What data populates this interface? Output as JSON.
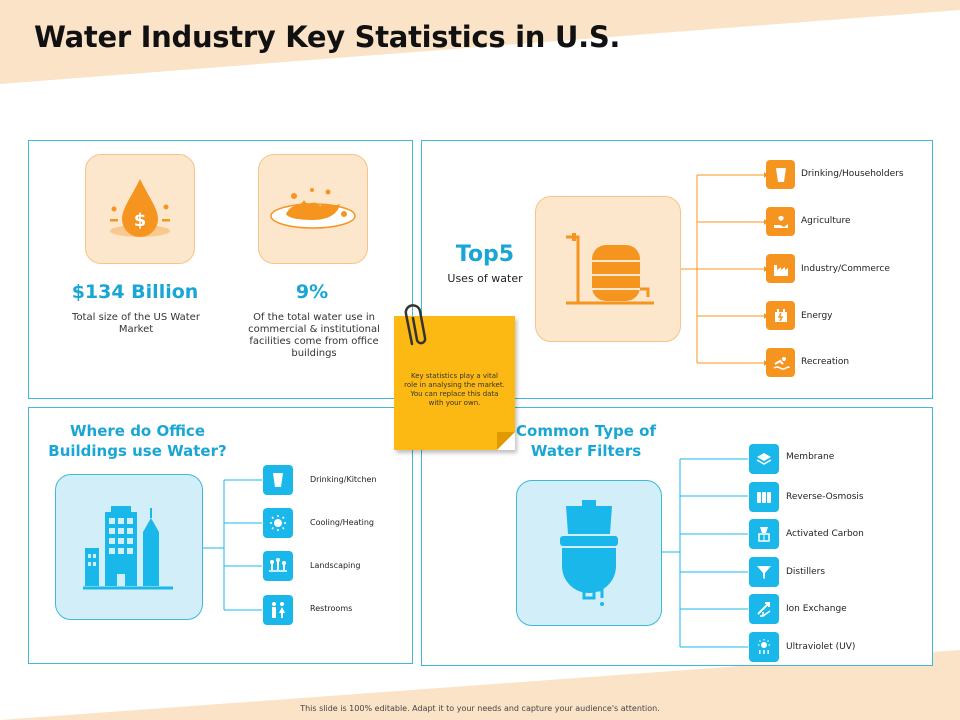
{
  "title": "Water Industry Key Statistics in U.S.",
  "stats": [
    {
      "value": "$134 Billion",
      "description": "Total size of the US Water Market",
      "icon": "money-drop-icon"
    },
    {
      "value": "9%",
      "description": "Of the total water use in commercial & institutional facilities come from office buildings",
      "icon": "water-splash-icon"
    }
  ],
  "top5": {
    "heading": "Top5",
    "subheading": "Uses of water",
    "icon": "water-tank-icon",
    "items": [
      {
        "label": "Drinking/Householders",
        "icon": "cup-icon"
      },
      {
        "label": "Agriculture",
        "icon": "plant-hand-icon"
      },
      {
        "label": "Industry/Commerce",
        "icon": "factory-icon"
      },
      {
        "label": "Energy",
        "icon": "energy-icon"
      },
      {
        "label": "Recreation",
        "icon": "swimming-icon"
      }
    ]
  },
  "office": {
    "heading_line1": "Where do Office",
    "heading_line2": "Buildings use Water?",
    "icon": "office-buildings-icon",
    "items": [
      {
        "label": "Drinking/Kitchen",
        "icon": "glass-icon"
      },
      {
        "label": "Cooling/Heating",
        "icon": "sun-icon"
      },
      {
        "label": "Landscaping",
        "icon": "garden-icon"
      },
      {
        "label": "Restrooms",
        "icon": "restroom-icon"
      }
    ]
  },
  "filters": {
    "heading_line1": "Common Type of",
    "heading_line2": "Water Filters",
    "icon": "water-filter-icon",
    "items": [
      {
        "label": "Membrane",
        "icon": "layers-icon"
      },
      {
        "label": "Reverse-Osmosis",
        "icon": "cartridges-icon"
      },
      {
        "label": "Activated Carbon",
        "icon": "carbon-filter-icon"
      },
      {
        "label": "Distillers",
        "icon": "funnel-icon"
      },
      {
        "label": "Ion Exchange",
        "icon": "exchange-arrows-icon"
      },
      {
        "label": "Ultraviolet (UV)",
        "icon": "uv-icon"
      }
    ]
  },
  "note": "Key statistics play a vital role in analysing the market. You can replace this data with your own.",
  "footer": "This slide is 100% editable. Adapt it to your needs and capture your audience's attention.",
  "colors": {
    "orange": "#f5951f",
    "blue": "#1ab8ea",
    "accent_text": "#1aa6d4",
    "border": "#3fb8d9",
    "note": "#fdb913"
  }
}
